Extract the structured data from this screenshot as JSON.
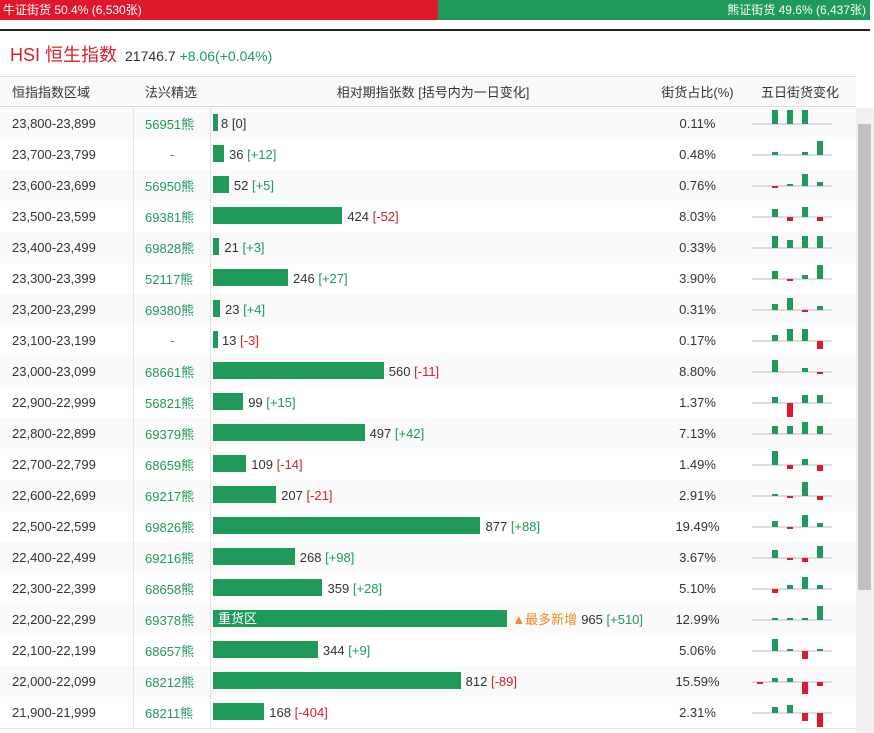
{
  "top": {
    "bull": {
      "text": "牛证街货 50.4% (6,530张)",
      "share": 50.4
    },
    "bear": {
      "text": "熊证街货 49.6% (6,437张)",
      "share": 49.6
    }
  },
  "header": {
    "title": "HSI 恒生指数",
    "price": "21746.7",
    "change": "+8.06(+0.04%)"
  },
  "table": {
    "columns": [
      "恒指指数区域",
      "法兴精选",
      "相对期指张数 [括号内为一日变化]",
      "街货占比(%)",
      "五日街货变化"
    ],
    "rows": [
      {
        "range": "23,800-23,899",
        "pick": "56951熊",
        "count": 8,
        "change": "[0]",
        "share": "0.11%",
        "five_day": [
          0,
          14,
          14,
          14,
          0
        ]
      },
      {
        "range": "23,700-23,799",
        "pick": "-",
        "count": 36,
        "change": "[+12]",
        "share": "0.48%",
        "five_day": [
          0,
          3,
          0,
          3,
          14
        ]
      },
      {
        "range": "23,600-23,699",
        "pick": "56950熊",
        "count": 52,
        "change": "[+5]",
        "share": "0.76%",
        "five_day": [
          0,
          -2,
          2,
          12,
          4
        ]
      },
      {
        "range": "23,500-23,599",
        "pick": "69381熊",
        "count": 424,
        "change": "[-52]",
        "share": "8.03%",
        "five_day": [
          0,
          8,
          -4,
          10,
          -4
        ]
      },
      {
        "range": "23,400-23,499",
        "pick": "69828熊",
        "count": 21,
        "change": "[+3]",
        "share": "0.33%",
        "five_day": [
          0,
          12,
          8,
          12,
          12
        ]
      },
      {
        "range": "23,300-23,399",
        "pick": "52117熊",
        "count": 246,
        "change": "[+27]",
        "share": "3.90%",
        "five_day": [
          0,
          8,
          -2,
          4,
          14
        ]
      },
      {
        "range": "23,200-23,299",
        "pick": "69380熊",
        "count": 23,
        "change": "[+4]",
        "share": "0.31%",
        "five_day": [
          0,
          6,
          12,
          -2,
          4
        ]
      },
      {
        "range": "23,100-23,199",
        "pick": "-",
        "count": 13,
        "change": "[-3]",
        "share": "0.17%",
        "five_day": [
          0,
          6,
          12,
          12,
          -8
        ]
      },
      {
        "range": "23,000-23,099",
        "pick": "68661熊",
        "count": 560,
        "change": "[-11]",
        "share": "8.80%",
        "five_day": [
          0,
          12,
          0,
          4,
          -2
        ]
      },
      {
        "range": "22,900-22,999",
        "pick": "56821熊",
        "count": 99,
        "change": "[+15]",
        "share": "1.37%",
        "five_day": [
          0,
          6,
          -14,
          8,
          8
        ]
      },
      {
        "range": "22,800-22,899",
        "pick": "69379熊",
        "count": 497,
        "change": "[+42]",
        "share": "7.13%",
        "five_day": [
          0,
          8,
          8,
          12,
          8
        ]
      },
      {
        "range": "22,700-22,799",
        "pick": "68659熊",
        "count": 109,
        "change": "[-14]",
        "share": "1.49%",
        "five_day": [
          0,
          14,
          -4,
          6,
          -6
        ]
      },
      {
        "range": "22,600-22,699",
        "pick": "69217熊",
        "count": 207,
        "change": "[-21]",
        "share": "2.91%",
        "five_day": [
          0,
          2,
          -2,
          14,
          -4
        ]
      },
      {
        "range": "22,500-22,599",
        "pick": "69826熊",
        "count": 877,
        "change": "[+88]",
        "share": "19.49%",
        "five_day": [
          0,
          6,
          -2,
          12,
          4
        ]
      },
      {
        "range": "22,400-22,499",
        "pick": "69216熊",
        "count": 268,
        "change": "[+98]",
        "share": "3.67%",
        "five_day": [
          0,
          8,
          -2,
          -4,
          12
        ]
      },
      {
        "range": "22,300-22,399",
        "pick": "68658熊",
        "count": 359,
        "change": "[+28]",
        "share": "5.10%",
        "five_day": [
          0,
          -4,
          4,
          12,
          4
        ]
      },
      {
        "range": "22,200-22,299",
        "pick": "69378熊",
        "count": 965,
        "change": "[+510]",
        "share": "12.99%",
        "zone_label": "重货区",
        "note": "▲最多新增",
        "five_day": [
          0,
          2,
          2,
          2,
          14
        ]
      },
      {
        "range": "22,100-22,199",
        "pick": "68657熊",
        "count": 344,
        "change": "[+9]",
        "share": "5.06%",
        "five_day": [
          0,
          12,
          2,
          -8,
          2
        ]
      },
      {
        "range": "22,000-22,099",
        "pick": "68212熊",
        "count": 812,
        "change": "[-89]",
        "share": "15.59%",
        "five_day": [
          -2,
          4,
          4,
          -12,
          -4
        ]
      },
      {
        "range": "21,900-21,999",
        "pick": "68211熊",
        "count": 168,
        "change": "[-404]",
        "share": "2.31%",
        "five_day": [
          0,
          6,
          8,
          -8,
          -14
        ]
      }
    ]
  }
}
